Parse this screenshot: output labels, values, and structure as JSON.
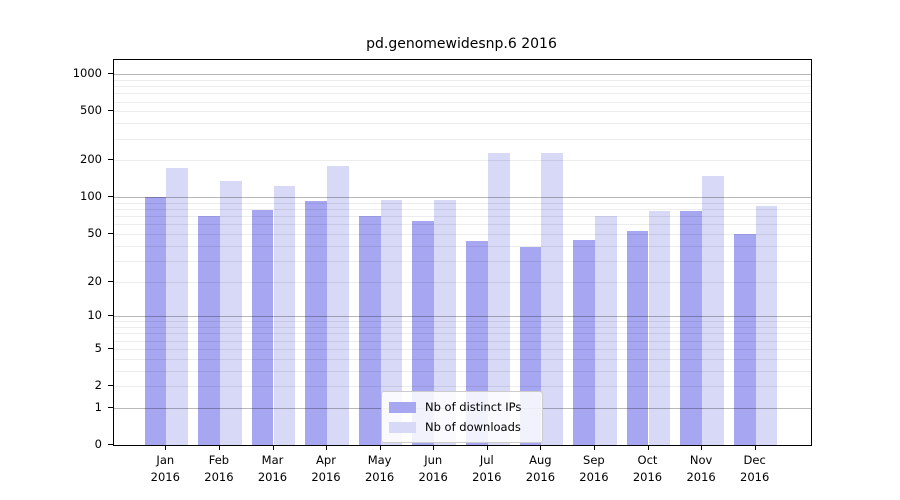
{
  "chart_data": {
    "type": "bar",
    "title": "pd.genomewidesnp.6 2016",
    "categories": [
      "Jan 2016",
      "Feb 2016",
      "Mar 2016",
      "Apr 2016",
      "May 2016",
      "Jun 2016",
      "Jul 2016",
      "Aug 2016",
      "Sep 2016",
      "Oct 2016",
      "Nov 2016",
      "Dec 2016"
    ],
    "series": [
      {
        "name": "Nb of distinct IPs",
        "color": "#a6a6f1",
        "values": [
          100,
          70,
          79,
          93,
          70,
          64,
          44,
          39,
          45,
          53,
          78,
          50
        ]
      },
      {
        "name": "Nb of downloads",
        "color": "#d8d8f7",
        "values": [
          173,
          135,
          123,
          182,
          95,
          95,
          232,
          232,
          70,
          78,
          150,
          85
        ]
      }
    ],
    "yticks": [
      0,
      1,
      2,
      5,
      10,
      20,
      50,
      100,
      200,
      500,
      1000
    ],
    "y_scale": "log10(value+1)",
    "ylim": [
      0,
      1305
    ],
    "grid": "on",
    "legend_position": "inside lower-center",
    "colors": {
      "grid_minor": "rgba(0,0,0,0.075)",
      "grid_major": "rgba(0,0,0,0.28)",
      "axis": "#000000"
    }
  }
}
